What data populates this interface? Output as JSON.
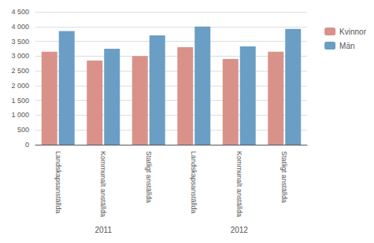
{
  "chart_data": {
    "type": "bar",
    "categories": [
      "Landskapsanställda",
      "Kommunalt anställda",
      "Statligt anställda",
      "Landskapsanställda",
      "Kommunalt anställda",
      "Statligt anställda"
    ],
    "series": [
      {
        "name": "Kvinnor",
        "color": "#d9928a",
        "values": [
          3150,
          2850,
          3000,
          3300,
          2900,
          3150
        ]
      },
      {
        "name": "Män",
        "color": "#6a9ec5",
        "values": [
          3850,
          3250,
          3700,
          4000,
          3330,
          3920
        ]
      }
    ],
    "annotations": [
      "2011",
      "2012"
    ],
    "ylim": [
      0,
      4500
    ],
    "yticks": [
      0,
      500,
      {
        "value": 1000,
        "label": "1 000"
      },
      {
        "value": 1500,
        "label": "1 500"
      },
      {
        "value": 2000,
        "label": "2 000"
      },
      {
        "value": 2500,
        "label": "2 500"
      },
      {
        "value": 3000,
        "label": "3 000"
      },
      {
        "value": 3500,
        "label": "3 500"
      },
      {
        "value": 4000,
        "label": "4 000"
      },
      {
        "value": 4500,
        "label": "4 500"
      }
    ],
    "grid": true,
    "legend": "upper right"
  }
}
